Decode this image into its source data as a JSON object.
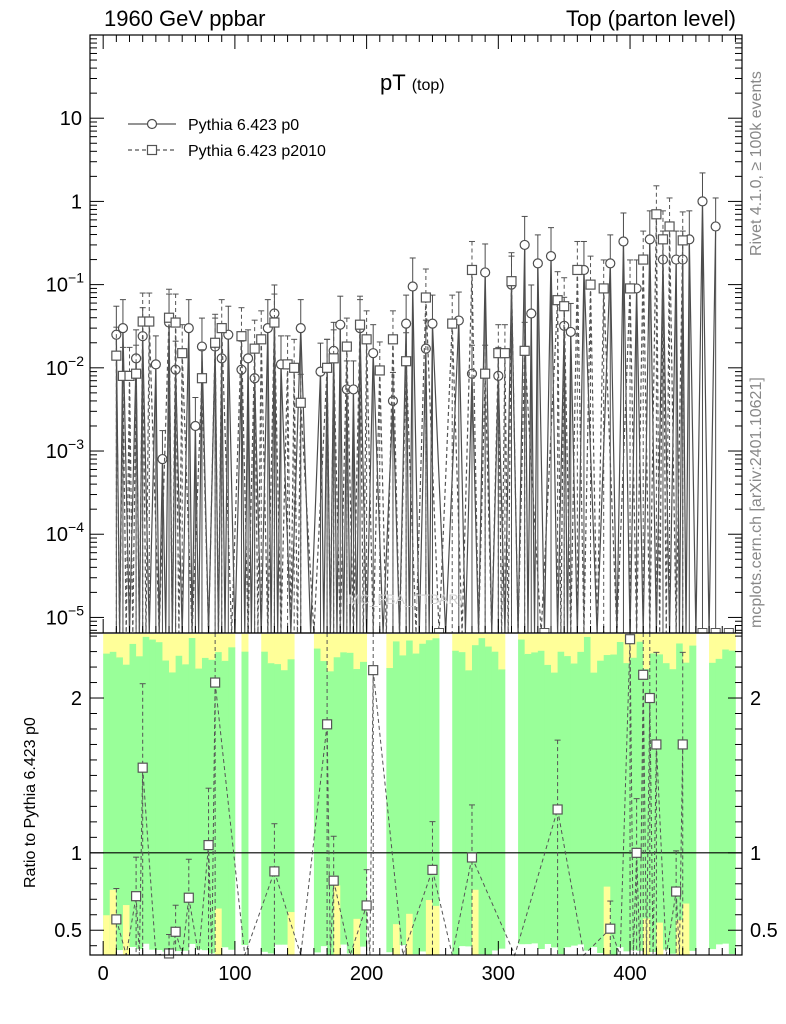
{
  "header": {
    "left_title": "1960 GeV ppbar",
    "right_title": "Top (parton level)"
  },
  "side_labels": {
    "rivet": "Rivet 4.1.0, ≥ 100k events",
    "mcplots": "mcplots.cern.ch [arXiv:2401.10621]"
  },
  "colors": {
    "band_green": "#99ff99",
    "band_yellow": "#ffff99",
    "series_line": "#4d4d4d",
    "series2_line": "#555555"
  },
  "chart_data": {
    "type": "line",
    "title": "pT",
    "title_sub": "(top)",
    "watermark": "MC_FBA_TTBAR)",
    "xlabel": "",
    "ylabel": "",
    "xlim": [
      -10,
      485
    ],
    "ylim": [
      6.5e-06,
      100
    ],
    "yscale": "log",
    "x_ticks": [
      0,
      100,
      200,
      300,
      400
    ],
    "y_ticks": [
      {
        "value": 1e-05,
        "base": "10",
        "exp": "−5"
      },
      {
        "value": 0.0001,
        "base": "10",
        "exp": "−4"
      },
      {
        "value": 0.001,
        "base": "10",
        "exp": "−3"
      },
      {
        "value": 0.01,
        "base": "10",
        "exp": "−2"
      },
      {
        "value": 0.1,
        "base": "10",
        "exp": "−1"
      },
      {
        "value": 1,
        "base": "1",
        "exp": ""
      },
      {
        "value": 10,
        "base": "10",
        "exp": ""
      }
    ],
    "legend": {
      "position": "top-left",
      "entries": [
        "Pythia 6.423 p0",
        "Pythia 6.423 p2010"
      ]
    },
    "series": [
      {
        "name": "Pythia 6.423 p0",
        "marker": "circle",
        "dashed": false,
        "points": [
          [
            10,
            0.025
          ],
          [
            15,
            0.03
          ],
          [
            25,
            0.013
          ],
          [
            30,
            0.024
          ],
          [
            40,
            0.011
          ],
          [
            45,
            0.0008
          ],
          [
            50,
            0.035
          ],
          [
            55,
            0.0095
          ],
          [
            65,
            0.03
          ],
          [
            70,
            0.002
          ],
          [
            75,
            0.018
          ],
          [
            85,
            0.018
          ],
          [
            90,
            0.013
          ],
          [
            95,
            0.025
          ],
          [
            105,
            0.0095
          ],
          [
            110,
            0.013
          ],
          [
            115,
            0.0075
          ],
          [
            125,
            0.03
          ],
          [
            130,
            0.045
          ],
          [
            135,
            0.011
          ],
          [
            150,
            0.03
          ],
          [
            165,
            0.009
          ],
          [
            170,
            0.01
          ],
          [
            175,
            0.016
          ],
          [
            180,
            0.033
          ],
          [
            185,
            0.0055
          ],
          [
            190,
            0.0055
          ],
          [
            195,
            0.03
          ],
          [
            205,
            0.015
          ],
          [
            220,
            0.004
          ],
          [
            230,
            0.034
          ],
          [
            235,
            0.095
          ],
          [
            245,
            0.017
          ],
          [
            250,
            0.034
          ],
          [
            270,
            0.037
          ],
          [
            280,
            0.0085
          ],
          [
            290,
            0.14
          ],
          [
            300,
            0.008
          ],
          [
            310,
            0.1
          ],
          [
            320,
            0.3
          ],
          [
            325,
            0.045
          ],
          [
            330,
            0.18
          ],
          [
            340,
            0.22
          ],
          [
            350,
            0.032
          ],
          [
            355,
            0.027
          ],
          [
            365,
            0.15
          ],
          [
            385,
            0.18
          ],
          [
            395,
            0.33
          ],
          [
            405,
            0.09
          ],
          [
            415,
            0.35
          ],
          [
            425,
            0.2
          ],
          [
            435,
            0.2
          ],
          [
            440,
            0.2
          ],
          [
            445,
            0.35
          ],
          [
            455,
            1.0
          ],
          [
            465,
            0.5
          ]
        ]
      },
      {
        "name": "Pythia 6.423 p2010",
        "marker": "square",
        "dashed": true,
        "points": [
          [
            10,
            0.014
          ],
          [
            15,
            0.008
          ],
          [
            20,
            0.008
          ],
          [
            25,
            0.0085
          ],
          [
            30,
            0.036
          ],
          [
            35,
            0.036
          ],
          [
            50,
            0.04
          ],
          [
            55,
            0.035
          ],
          [
            60,
            0.015
          ],
          [
            75,
            0.0075
          ],
          [
            85,
            0.02
          ],
          [
            90,
            0.03
          ],
          [
            105,
            0.024
          ],
          [
            115,
            0.017
          ],
          [
            120,
            0.022
          ],
          [
            130,
            0.035
          ],
          [
            140,
            0.011
          ],
          [
            145,
            0.01
          ],
          [
            150,
            0.0038
          ],
          [
            170,
            0.01
          ],
          [
            175,
            0.013
          ],
          [
            185,
            0.018
          ],
          [
            195,
            0.033
          ],
          [
            200,
            0.022
          ],
          [
            210,
            0.0093
          ],
          [
            220,
            0.022
          ],
          [
            230,
            0.012
          ],
          [
            245,
            0.07
          ],
          [
            265,
            0.034
          ],
          [
            280,
            0.15
          ],
          [
            290,
            0.0085
          ],
          [
            300,
            0.015
          ],
          [
            305,
            0.015
          ],
          [
            310,
            0.11
          ],
          [
            320,
            0.016
          ],
          [
            345,
            0.065
          ],
          [
            350,
            0.055
          ],
          [
            360,
            0.15
          ],
          [
            370,
            0.1
          ],
          [
            380,
            0.09
          ],
          [
            400,
            0.09
          ],
          [
            410,
            0.2
          ],
          [
            420,
            0.7
          ],
          [
            425,
            0.35
          ],
          [
            430,
            0.5
          ],
          [
            440,
            0.34
          ]
        ]
      }
    ],
    "ratio": {
      "ylabel": "Ratio to Pythia 6.423 p0",
      "ylim": [
        0.34,
        2.42
      ],
      "y_ticks": [
        "0.5",
        "1",
        "2"
      ],
      "y_tick_values": [
        0.5,
        1,
        2
      ],
      "reference": 1,
      "points": [
        [
          10,
          0.57
        ],
        [
          25,
          0.72
        ],
        [
          30,
          1.55
        ],
        [
          50,
          0.35
        ],
        [
          55,
          0.49
        ],
        [
          65,
          0.71
        ],
        [
          80,
          1.05
        ],
        [
          85,
          2.1
        ],
        [
          130,
          0.88
        ],
        [
          170,
          1.83
        ],
        [
          175,
          0.82
        ],
        [
          200,
          0.66
        ],
        [
          205,
          2.18
        ],
        [
          250,
          0.89
        ],
        [
          280,
          0.97
        ],
        [
          345,
          1.28
        ],
        [
          385,
          0.51
        ],
        [
          400,
          2.38
        ],
        [
          405,
          1.0
        ],
        [
          410,
          2.15
        ],
        [
          415,
          2.0
        ],
        [
          420,
          1.7
        ],
        [
          435,
          0.75
        ],
        [
          440,
          1.7
        ]
      ]
    }
  }
}
